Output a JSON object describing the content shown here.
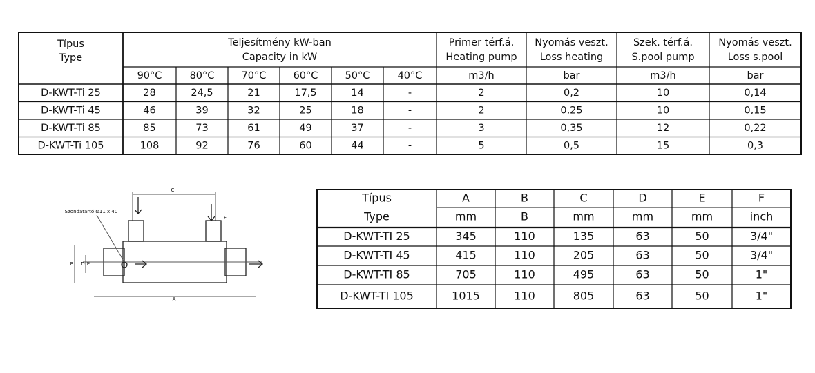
{
  "table1": {
    "headers": [
      [
        "Típus",
        "Type"
      ],
      [
        "Teljesítmény kW-ban",
        "Capacity in kW"
      ],
      [
        "Primer térf.á.",
        "Heating pump"
      ],
      [
        "Nyomás veszt.",
        "Loss heating"
      ],
      [
        "Szek. térf.á.",
        "S.pool pump"
      ],
      [
        "Nyomás veszt.",
        "Loss s.pool"
      ]
    ],
    "units": [
      "90°C",
      "80°C",
      "70°C",
      "60°C",
      "50°C",
      "40°C",
      "m3/h",
      "bar",
      "m3/h",
      "bar"
    ],
    "rows": [
      [
        "D-KWT-Ti 25",
        "28",
        "24,5",
        "21",
        "17,5",
        "14",
        "-",
        "2",
        "0,2",
        "10",
        "0,14"
      ],
      [
        "D-KWT-Ti 45",
        "46",
        "39",
        "32",
        "25",
        "18",
        "-",
        "2",
        "0,25",
        "10",
        "0,15"
      ],
      [
        "D-KWT-Ti 85",
        "85",
        "73",
        "61",
        "49",
        "37",
        "-",
        "3",
        "0,35",
        "12",
        "0,22"
      ],
      [
        "D-KWT-Ti 105",
        "108",
        "92",
        "76",
        "60",
        "44",
        "-",
        "5",
        "0,5",
        "15",
        "0,3"
      ]
    ]
  },
  "table2": {
    "headers": [
      [
        "Típus",
        "Type"
      ],
      [
        "A",
        "mm"
      ],
      [
        "B",
        "B"
      ],
      [
        "C",
        "mm"
      ],
      [
        "D",
        "mm"
      ],
      [
        "E",
        "mm"
      ],
      [
        "F",
        "inch"
      ]
    ],
    "rows": [
      [
        "D-KWT-TI 25",
        "345",
        "110",
        "135",
        "63",
        "50",
        "3/4\""
      ],
      [
        "D-KWT-TI 45",
        "415",
        "110",
        "205",
        "63",
        "50",
        "3/4\""
      ],
      [
        "D-KWT-TI 85",
        "705",
        "110",
        "495",
        "63",
        "50",
        "1\""
      ],
      [
        "D-KWT-TI 105",
        "1015",
        "110",
        "805",
        "63",
        "50",
        "1\""
      ]
    ]
  },
  "drawing": {
    "callout": "Szondatartó Ø11 x 40",
    "labels": [
      "A",
      "B",
      "C",
      "D",
      "E",
      "F"
    ]
  }
}
